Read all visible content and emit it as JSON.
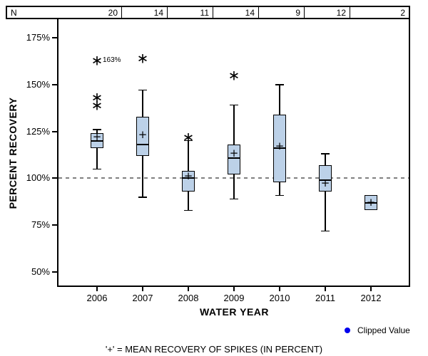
{
  "n_row": {
    "label": "N",
    "values": [
      "20",
      "14",
      "11",
      "14",
      "9",
      "12",
      "2"
    ]
  },
  "y_axis": {
    "title": "PERCENT RECOVERY"
  },
  "x_axis": {
    "title": "WATER YEAR"
  },
  "legend": {
    "label": "Clipped Value",
    "dot_color": "#0000ee"
  },
  "footnote": "'+' = MEAN RECOVERY OF SPIKES (IN PERCENT)",
  "chart_data": {
    "type": "boxplot",
    "title": "",
    "xlabel": "WATER YEAR",
    "ylabel": "PERCENT RECOVERY",
    "categories": [
      "2006",
      "2007",
      "2008",
      "2009",
      "2010",
      "2011",
      "2012"
    ],
    "counts": [
      20,
      14,
      11,
      14,
      9,
      12,
      2
    ],
    "ylim": [
      42,
      185
    ],
    "yticks": [
      175,
      150,
      125,
      100,
      75,
      50
    ],
    "ytick_labels": [
      "175%",
      "150%",
      "125%",
      "100%",
      "75%",
      "50%"
    ],
    "reference_line": 100,
    "grid": false,
    "legend_position": "bottom-right",
    "series": [
      {
        "category": "2006",
        "n": 20,
        "whisker_low": 105,
        "q1": 116,
        "median": 120,
        "mean": 122,
        "q3": 124,
        "whisker_high": 126,
        "outliers": [
          {
            "value": 163,
            "label": "163%"
          },
          {
            "value": 143
          },
          {
            "value": 139
          }
        ]
      },
      {
        "category": "2007",
        "n": 14,
        "whisker_low": 90,
        "q1": 112,
        "median": 118,
        "mean": 123,
        "q3": 133,
        "whisker_high": 147,
        "outliers": [
          {
            "value": 164
          }
        ]
      },
      {
        "category": "2008",
        "n": 11,
        "whisker_low": 83,
        "q1": 93,
        "median": 100,
        "mean": 101,
        "q3": 104,
        "whisker_high": 120,
        "outliers": [
          {
            "value": 122
          }
        ]
      },
      {
        "category": "2009",
        "n": 14,
        "whisker_low": 89,
        "q1": 102,
        "median": 111,
        "mean": 113,
        "q3": 118,
        "whisker_high": 139,
        "outliers": [
          {
            "value": 155
          }
        ]
      },
      {
        "category": "2010",
        "n": 9,
        "whisker_low": 91,
        "q1": 98,
        "median": 116,
        "mean": 117,
        "q3": 134,
        "whisker_high": 150,
        "outliers": []
      },
      {
        "category": "2011",
        "n": 12,
        "whisker_low": 72,
        "q1": 93,
        "median": 99,
        "mean": 97,
        "q3": 107,
        "whisker_high": 113,
        "outliers": []
      },
      {
        "category": "2012",
        "n": 2,
        "whisker_low": 83,
        "q1": 83,
        "median": 87,
        "mean": 87,
        "q3": 91,
        "whisker_high": 91,
        "outliers": []
      }
    ],
    "colors": {
      "box_fill": "#bcd1e8",
      "box_border": "#000000",
      "reference_line": "#808080",
      "clipped_value_dot": "#0000ee"
    }
  }
}
